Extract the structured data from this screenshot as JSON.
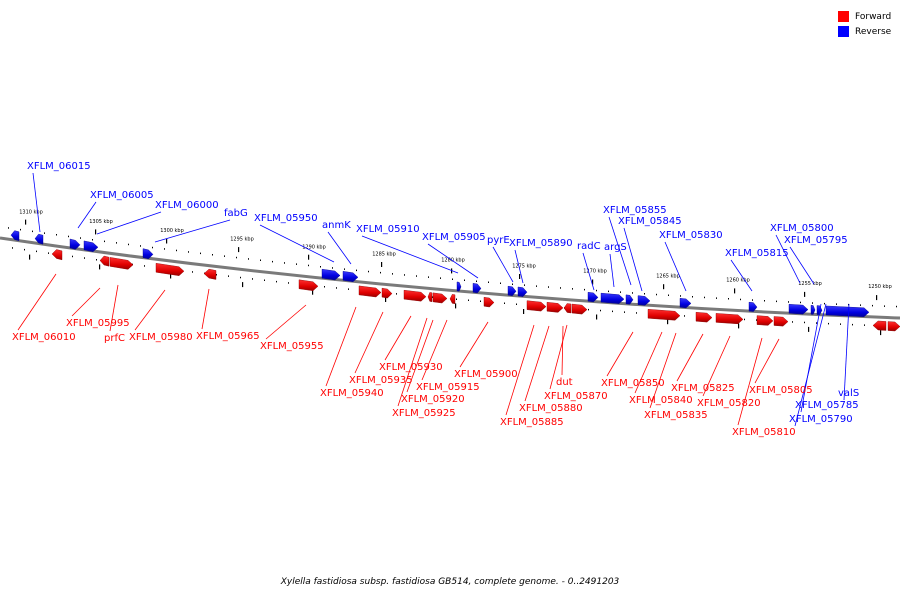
{
  "legend": [
    {
      "label": "Forward",
      "color": "#ff0000"
    },
    {
      "label": "Reverse",
      "color": "#0000ff"
    }
  ],
  "footer": "Xylella fastidiosa subsp. fastidiosa GB514, complete genome. - 0..2491203",
  "colors": {
    "forward": "#ff0000",
    "reverse": "#0000ff",
    "backbone": "#7a7a7a"
  },
  "ticks": [
    "1310 kbp",
    "1305 kbp",
    "1300 kbp",
    "1295 kbp",
    "1290 kbp",
    "1285 kbp",
    "1280 kbp",
    "1275 kbp",
    "1270 kbp",
    "1265 kbp",
    "1260 kbp",
    "1255 kbp",
    "1250 kbp"
  ],
  "genes_reverse": [
    "XFLM_06015",
    "XFLM_06005",
    "XFLM_06000",
    "fabG",
    "XFLM_05950",
    "anmK",
    "XFLM_05910",
    "XFLM_05905",
    "pyrE",
    "XFLM_05890",
    "radC",
    "argS",
    "XFLM_05855",
    "XFLM_05845",
    "XFLM_05830",
    "XFLM_05815",
    "XFLM_05800",
    "XFLM_05795",
    "XFLM_05785",
    "XFLM_05790",
    "valS"
  ],
  "genes_forward": [
    "XFLM_06010",
    "XFLM_05995",
    "prfC",
    "XFLM_05980",
    "XFLM_05965",
    "XFLM_05955",
    "XFLM_05940",
    "XFLM_05935",
    "XFLM_05930",
    "XFLM_05925",
    "XFLM_05920",
    "XFLM_05915",
    "XFLM_05900",
    "XFLM_05885",
    "XFLM_05880",
    "XFLM_05870",
    "dut",
    "XFLM_05850",
    "XFLM_05840",
    "XFLM_05835",
    "XFLM_05825",
    "XFLM_05820",
    "XFLM_05810",
    "XFLM_05805"
  ]
}
